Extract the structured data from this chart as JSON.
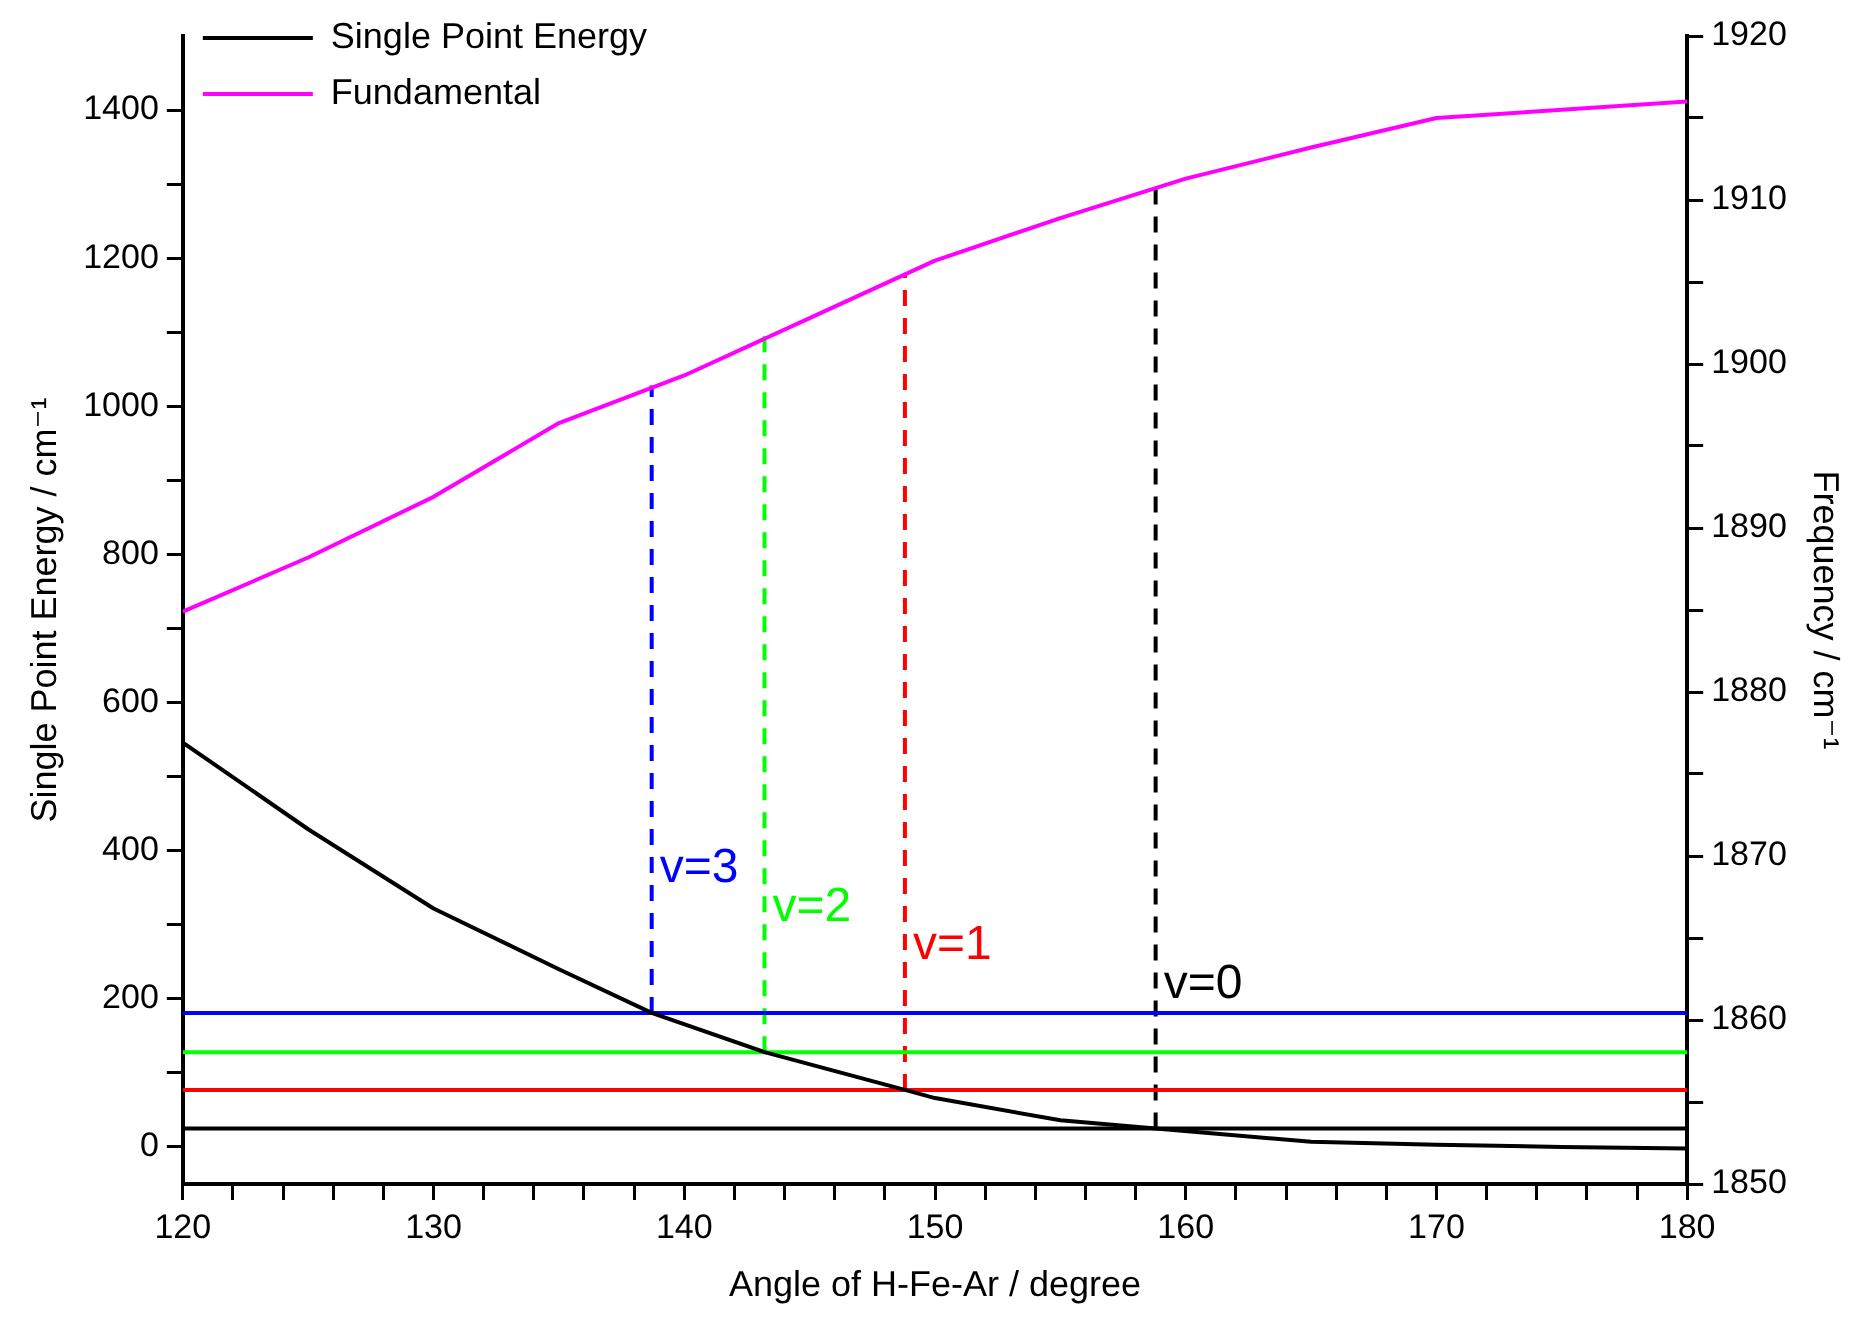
{
  "chart_data": {
    "type": "line",
    "xlabel": "Angle of H-Fe-Ar / degree",
    "ylabel": "Single Point Energy / cm⁻¹",
    "y2label": "Frequency / cm⁻¹",
    "xlim": [
      120,
      180
    ],
    "xticks": [
      120,
      {
        "value": 122,
        "label": null
      },
      {
        "value": 124,
        "label": null
      },
      {
        "value": 126,
        "label": null
      },
      {
        "value": 128,
        "label": null
      },
      130,
      {
        "value": 132,
        "label": null
      },
      {
        "value": 134,
        "label": null
      },
      {
        "value": 136,
        "label": null
      },
      {
        "value": 138,
        "label": null
      },
      140,
      {
        "value": 142,
        "label": null
      },
      {
        "value": 144,
        "label": null
      },
      {
        "value": 146,
        "label": null
      },
      {
        "value": 148,
        "label": null
      },
      150,
      {
        "value": 152,
        "label": null
      },
      {
        "value": 154,
        "label": null
      },
      {
        "value": 156,
        "label": null
      },
      {
        "value": 158,
        "label": null
      },
      160,
      {
        "value": 162,
        "label": null
      },
      {
        "value": 164,
        "label": null
      },
      {
        "value": 166,
        "label": null
      },
      {
        "value": 168,
        "label": null
      },
      170,
      {
        "value": 172,
        "label": null
      },
      {
        "value": 174,
        "label": null
      },
      {
        "value": 176,
        "label": null
      },
      {
        "value": 178,
        "label": null
      },
      180
    ],
    "ylim": [
      -50,
      1500
    ],
    "yticks": [
      0,
      {
        "value": 100,
        "label": null
      },
      200,
      {
        "value": 300,
        "label": null
      },
      400,
      {
        "value": 500,
        "label": null
      },
      600,
      {
        "value": 700,
        "label": null
      },
      800,
      {
        "value": 900,
        "label": null
      },
      1000,
      {
        "value": 1100,
        "label": null
      },
      1200,
      {
        "value": 1300,
        "label": null
      },
      1400
    ],
    "y2lim": [
      1850,
      1920
    ],
    "y2ticks": [
      1850,
      {
        "value": 1855,
        "label": null
      },
      1860,
      {
        "value": 1865,
        "label": null
      },
      1870,
      {
        "value": 1875,
        "label": null
      },
      1880,
      {
        "value": 1885,
        "label": null
      },
      1890,
      {
        "value": 1895,
        "label": null
      },
      1900,
      {
        "value": 1905,
        "label": null
      },
      1910,
      {
        "value": 1915,
        "label": null
      },
      1920
    ],
    "grid": false,
    "legend": "top left",
    "marker": "none",
    "series": [
      {
        "name": "Single Point Energy",
        "color": "#000000",
        "x": [
          120,
          125,
          130,
          135,
          138.7,
          143.2,
          148.8,
          150,
          155,
          158.8,
          165,
          170,
          175,
          180
        ],
        "values": [
          546,
          429,
          322,
          240,
          181,
          128,
          77,
          66,
          36,
          25,
          7,
          3,
          0,
          -2
        ]
      },
      {
        "name": "Fundamental",
        "color": "#ff00ff",
        "axis": "y2",
        "x": [
          120,
          125,
          130,
          135,
          140,
          145,
          150,
          155,
          160,
          165,
          170,
          175,
          180
        ],
        "values": [
          1884.9,
          1888.2,
          1891.9,
          1896.4,
          1899.3,
          1902.8,
          1906.3,
          1908.9,
          1911.3,
          1913.2,
          1915.0,
          1915.5,
          1916.0
        ]
      },
      {
        "color": "#0000ff",
        "x": [
          120,
          180
        ],
        "values": [
          181,
          181
        ]
      },
      {
        "color": "#00ff00",
        "x": [
          120,
          180
        ],
        "values": [
          128,
          128
        ]
      },
      {
        "color": "#ff0000",
        "x": [
          120,
          180
        ],
        "values": [
          77,
          77
        ]
      },
      {
        "color": "#000000",
        "x": [
          120,
          180
        ],
        "values": [
          25,
          25
        ]
      },
      {
        "name": "v=3",
        "color": "#0000ff",
        "line_style": "dashed",
        "x": [
          138.7,
          138.7
        ],
        "values": [
          181,
          1028
        ]
      },
      {
        "name": "v=2",
        "color": "#00ff00",
        "line_style": "dashed",
        "x": [
          143.2,
          143.2
        ],
        "values": [
          128,
          1095
        ]
      },
      {
        "name": "v=1",
        "color": "#ff0000",
        "line_style": "dashed",
        "x": [
          148.8,
          148.8
        ],
        "values": [
          77,
          1179
        ]
      },
      {
        "name": "v=0",
        "color": "#000000",
        "line_style": "dashed",
        "x": [
          158.8,
          158.8
        ],
        "values": [
          25,
          1297
        ]
      }
    ]
  }
}
